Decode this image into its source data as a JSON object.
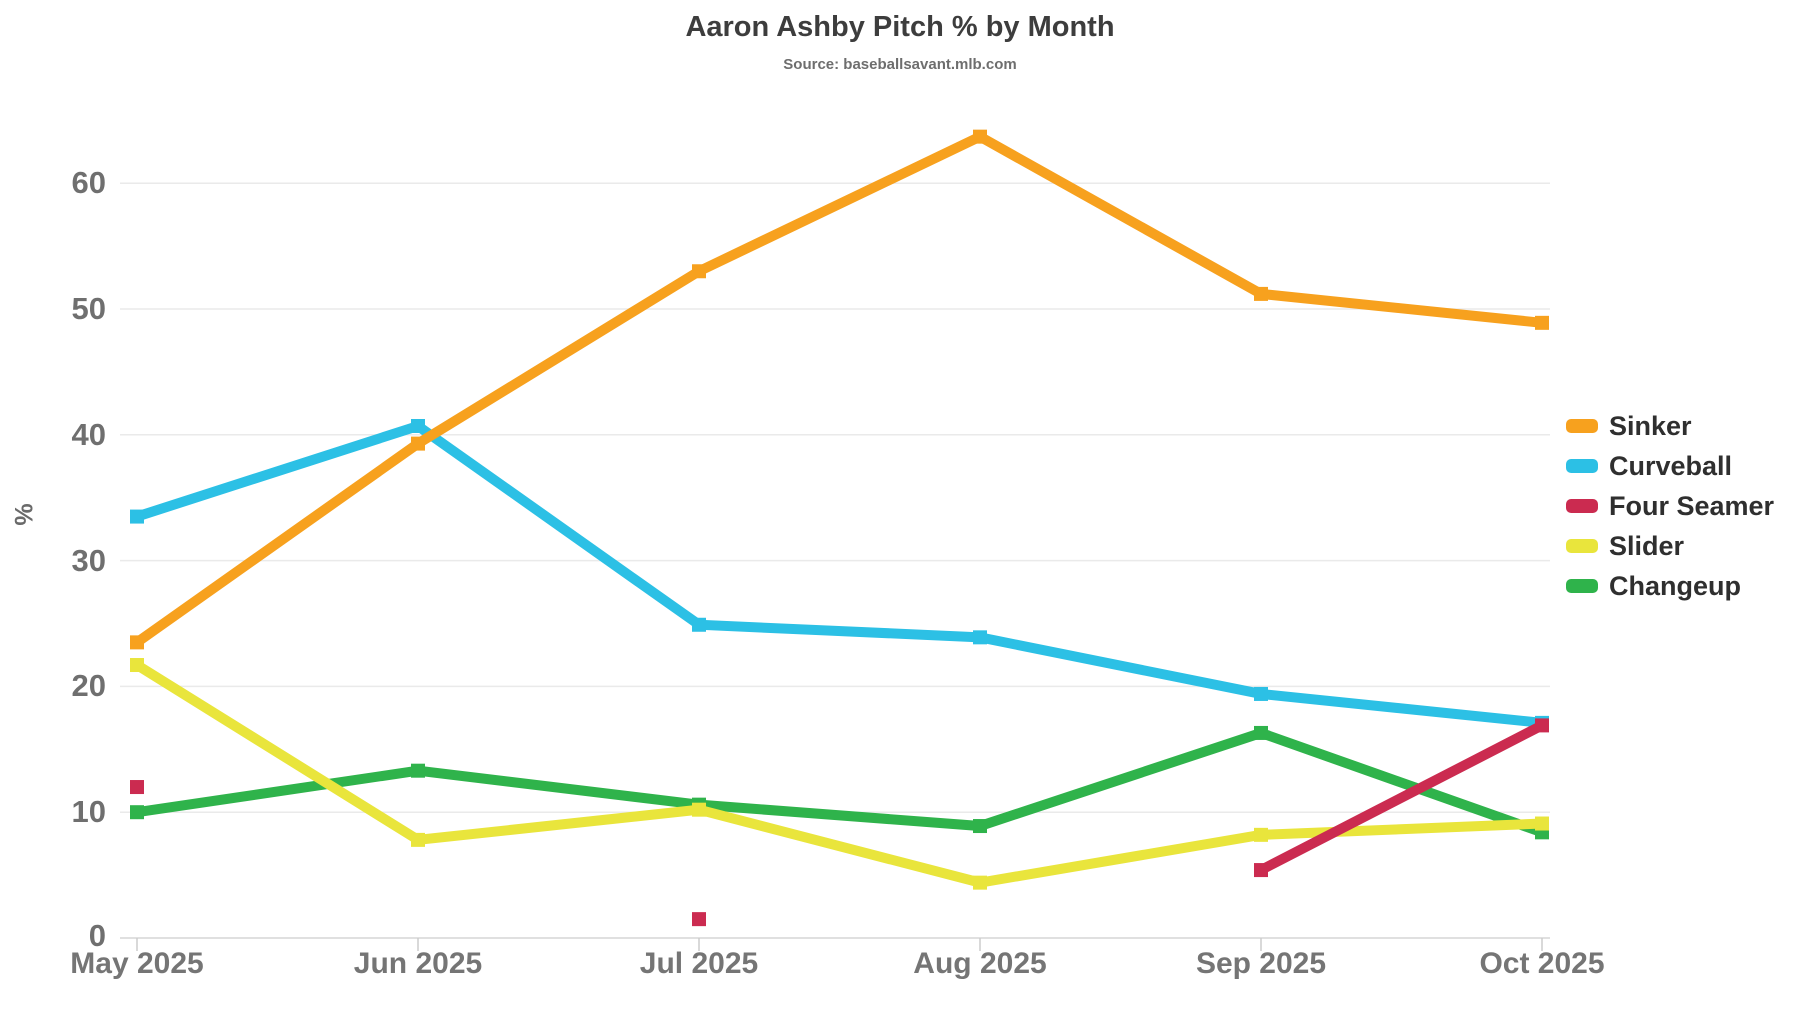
{
  "chart_data": {
    "type": "line",
    "title": "Aaron Ashby Pitch % by Month",
    "subtitle": "Source: baseballsavant.mlb.com",
    "xlabel": "",
    "ylabel": "%",
    "categories": [
      "May 2025",
      "Jun 2025",
      "Jul 2025",
      "Aug 2025",
      "Sep 2025",
      "Oct 2025"
    ],
    "y_ticks": [
      0,
      10,
      20,
      30,
      40,
      50,
      60
    ],
    "ylim": [
      0,
      65
    ],
    "grid": true,
    "legend_position": "right",
    "marker_shape": "square",
    "series": [
      {
        "name": "Sinker",
        "color": "#F7A11E",
        "values": [
          23.5,
          39.3,
          53.0,
          63.7,
          51.2,
          48.9
        ]
      },
      {
        "name": "Curveball",
        "color": "#2CC0E5",
        "values": [
          33.5,
          40.7,
          24.9,
          23.9,
          19.4,
          17.1
        ]
      },
      {
        "name": "Four Seamer",
        "color": "#CB2B50",
        "values": [
          12.0,
          null,
          1.5,
          null,
          5.4,
          16.9
        ]
      },
      {
        "name": "Slider",
        "color": "#E9E53C",
        "values": [
          21.7,
          7.8,
          10.2,
          4.4,
          8.2,
          9.1
        ]
      },
      {
        "name": "Changeup",
        "color": "#2FB34B",
        "values": [
          10.0,
          13.3,
          10.6,
          8.9,
          16.3,
          8.4
        ]
      }
    ],
    "palette": {
      "title_text": "#3d3d3d",
      "subtitle_text": "#6e6e6e",
      "tick_text": "#757575",
      "legend_text": "#2f2f2f",
      "gridline": "#eaeaea",
      "axis_line": "#d6d6d6"
    }
  }
}
